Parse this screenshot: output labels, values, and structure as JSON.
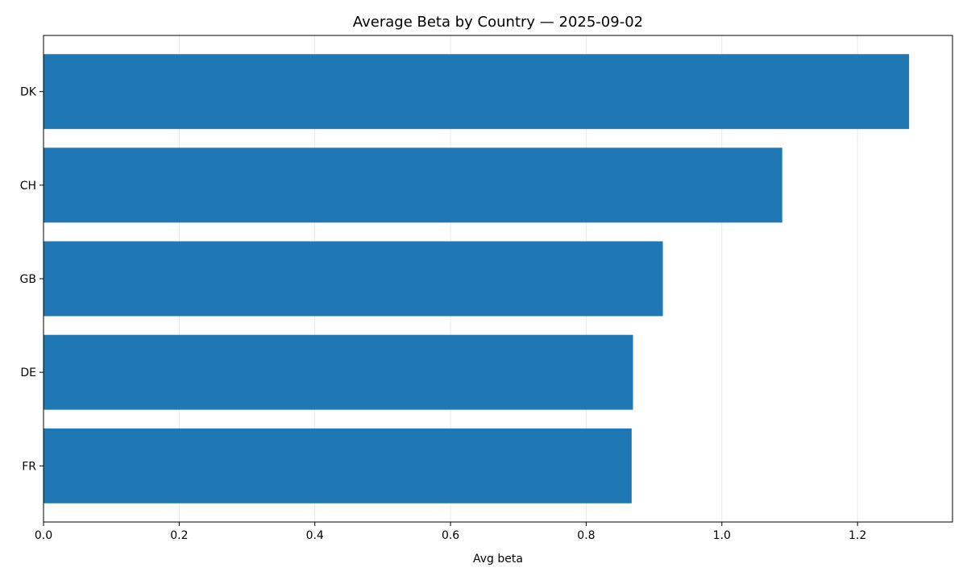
{
  "chart_data": {
    "type": "bar",
    "orientation": "horizontal",
    "title": "Average Beta by Country — 2025-09-02",
    "xlabel": "Avg beta",
    "ylabel": "",
    "categories": [
      "FR",
      "DE",
      "GB",
      "CH",
      "DK"
    ],
    "values": [
      0.867,
      0.869,
      0.913,
      1.089,
      1.276
    ],
    "xlim": [
      0,
      1.34
    ],
    "xticks": [
      0.0,
      0.2,
      0.4,
      0.6,
      0.8,
      1.0,
      1.2
    ],
    "xtick_labels": [
      "0.0",
      "0.2",
      "0.4",
      "0.6",
      "0.8",
      "1.0",
      "1.2"
    ],
    "grid": "x",
    "bar_color": "#1f77b4"
  }
}
